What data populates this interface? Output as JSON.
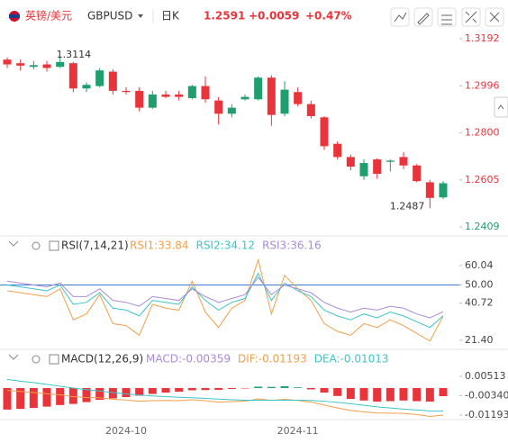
{
  "header": {
    "pair": "英镑/美元",
    "symbol": "GBPUSD",
    "period": "日K",
    "price": "1.2591",
    "change": "+0.0059",
    "change_pct": "+0.47%"
  },
  "chart_data": [
    {
      "type": "candlestick",
      "open": [
        1.3105,
        1.309,
        1.3075,
        1.3085,
        1.3075,
        1.309,
        1.2985,
        1.2995,
        1.3055,
        1.2975,
        1.2975,
        1.2905,
        1.296,
        1.296,
        1.2945,
        1.2995,
        1.2935,
        1.288,
        1.294,
        1.294,
        1.303,
        1.288,
        1.297,
        1.292,
        1.2865,
        1.2755,
        1.27,
        1.262,
        1.269,
        1.268,
        1.27,
        1.2665,
        1.2595,
        1.2532
      ],
      "high": [
        1.3114,
        1.3105,
        1.31,
        1.31,
        1.312,
        1.3095,
        1.301,
        1.307,
        1.3065,
        1.299,
        1.299,
        1.2975,
        1.2975,
        1.2975,
        1.3,
        1.3035,
        1.295,
        1.292,
        1.296,
        1.3035,
        1.304,
        1.3015,
        1.299,
        1.2935,
        1.287,
        1.2765,
        1.271,
        1.269,
        1.2695,
        1.269,
        1.272,
        1.267,
        1.2605,
        1.26
      ],
      "low": [
        1.307,
        1.306,
        1.3065,
        1.3055,
        1.307,
        1.297,
        1.297,
        1.299,
        1.296,
        1.296,
        1.289,
        1.29,
        1.2945,
        1.2935,
        1.294,
        1.2925,
        1.2835,
        1.2865,
        1.2935,
        1.2935,
        1.283,
        1.287,
        1.291,
        1.286,
        1.273,
        1.269,
        1.2645,
        1.2605,
        1.261,
        1.264,
        1.265,
        1.2595,
        1.2487,
        1.2525
      ],
      "close": [
        1.3085,
        1.308,
        1.3082,
        1.307,
        1.3095,
        1.2985,
        1.3,
        1.306,
        1.2975,
        1.297,
        1.2905,
        1.296,
        1.295,
        1.295,
        1.2995,
        1.294,
        1.288,
        1.2905,
        1.295,
        1.303,
        1.2875,
        1.298,
        1.292,
        1.287,
        1.2745,
        1.27,
        1.266,
        1.2675,
        1.263,
        1.2685,
        1.2665,
        1.26,
        1.253,
        1.2591
      ],
      "up_color": "#1f9e6e",
      "down_color": "#e8343a",
      "high_label": "1.3114",
      "low_label": "1.2487",
      "ylim": [
        1.2387,
        1.3218
      ],
      "yticks": [
        1.3192,
        1.2996,
        {
          "value": 1.28,
          "label": "1.2800"
        },
        1.2605,
        1.2409
      ]
    },
    {
      "type": "line",
      "title": "RSI(7,14,21)",
      "series": [
        {
          "name": "RSI1:33.84",
          "color": "#f0a04b",
          "values": [
            47,
            46,
            45,
            44,
            48,
            32,
            35,
            45,
            30,
            29,
            24,
            40,
            38,
            37,
            52,
            36,
            28,
            38,
            42,
            63,
            35,
            55,
            48,
            42,
            30,
            26,
            24,
            30,
            28,
            32,
            29,
            25,
            21,
            33.84
          ]
        },
        {
          "name": "RSI2:34.12",
          "color": "#3cc4c8",
          "values": [
            50,
            49,
            48,
            47,
            50,
            40,
            41,
            46,
            38,
            37,
            34,
            42,
            41,
            40,
            49,
            42,
            37,
            41,
            43,
            56,
            42,
            51,
            47,
            44,
            37,
            34,
            32,
            35,
            33,
            36,
            34,
            31,
            28,
            34.12
          ]
        },
        {
          "name": "RSI3:36.16",
          "color": "#a98bd8",
          "values": [
            52,
            51,
            50,
            49,
            51,
            44,
            44,
            48,
            42,
            41,
            39,
            44,
            43,
            42,
            48,
            44,
            41,
            43,
            45,
            54,
            45,
            50,
            48,
            46,
            41,
            38,
            36,
            38,
            37,
            39,
            38,
            35,
            33,
            36.16
          ]
        }
      ],
      "reference_line": 50,
      "reference_color": "#3b7fd0",
      "ylim": [
        18.1,
        65.6
      ],
      "yticks": [
        60.04,
        {
          "value": 50,
          "label": "50.00"
        },
        40.72,
        {
          "value": 21.4,
          "label": "21.40"
        }
      ]
    },
    {
      "type": "macd",
      "title": "MACD(12,26,9)",
      "categories": [
        null,
        null,
        null,
        null,
        null,
        null,
        null,
        null,
        null,
        "2024-10",
        null,
        null,
        null,
        null,
        null,
        null,
        null,
        null,
        null,
        null,
        null,
        null,
        "2024-11",
        null,
        null,
        null,
        null,
        null,
        null,
        null,
        null,
        null,
        null,
        null
      ],
      "bars": {
        "name": "MACD:-0.00359",
        "up_color": "#1f9e6e",
        "down_color": "#e8343a",
        "values": [
          -0.0095,
          -0.0092,
          -0.0088,
          -0.0082,
          -0.0075,
          -0.007,
          -0.0062,
          -0.0052,
          -0.0046,
          -0.004,
          -0.0034,
          -0.0026,
          -0.002,
          -0.0016,
          -0.001,
          -0.0009,
          -0.0008,
          -0.0004,
          -0.0002,
          0.0006,
          0.0005,
          0.0008,
          0.0003,
          -0.0006,
          -0.002,
          -0.0035,
          -0.0048,
          -0.0055,
          -0.006,
          -0.0058,
          -0.0055,
          -0.0058,
          -0.006,
          -0.00359
        ]
      },
      "series": [
        {
          "name": "DIF:-0.01193",
          "color": "#f0a04b",
          "values": [
            -0.001,
            -0.0015,
            -0.002,
            -0.0025,
            -0.003,
            -0.0038,
            -0.0042,
            -0.0043,
            -0.005,
            -0.0053,
            -0.0058,
            -0.0056,
            -0.0055,
            -0.0056,
            -0.0052,
            -0.0056,
            -0.0062,
            -0.006,
            -0.0058,
            -0.0048,
            -0.0055,
            -0.005,
            -0.0055,
            -0.0062,
            -0.0075,
            -0.0088,
            -0.0099,
            -0.0105,
            -0.011,
            -0.0111,
            -0.0112,
            -0.0117,
            -0.0125,
            -0.01193
          ]
        },
        {
          "name": "DEA:-0.01013",
          "color": "#3cc4c8",
          "values": [
            0.0038,
            0.003,
            0.0024,
            0.0016,
            0.0008,
            0.0,
            -0.0007,
            -0.0013,
            -0.002,
            -0.0026,
            -0.0031,
            -0.0035,
            -0.0038,
            -0.0041,
            -0.0043,
            -0.0046,
            -0.0049,
            -0.0052,
            -0.0054,
            -0.0054,
            -0.0054,
            -0.0054,
            -0.0054,
            -0.0055,
            -0.0058,
            -0.0063,
            -0.0069,
            -0.0076,
            -0.0083,
            -0.0088,
            -0.0093,
            -0.0097,
            -0.0101,
            -0.01013
          ]
        }
      ],
      "ylim": [
        -0.0155,
        0.0103
      ],
      "yticks": [
        0.00513,
        {
          "value": -0.0034,
          "label": "-0.00340"
        },
        -0.01193
      ]
    }
  ]
}
